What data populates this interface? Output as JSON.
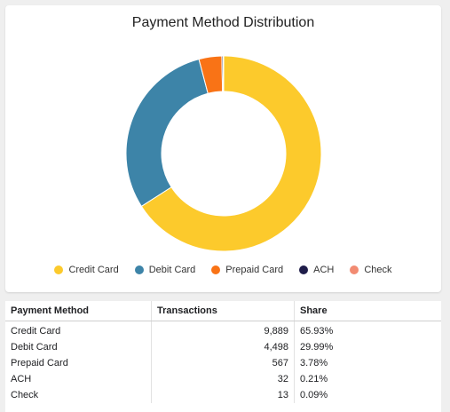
{
  "chart_data": {
    "type": "pie",
    "title": "Payment Method Distribution",
    "donut": true,
    "categories": [
      "Credit Card",
      "Debit Card",
      "Prepaid Card",
      "ACH",
      "Check"
    ],
    "values": [
      9889,
      4498,
      567,
      32,
      13
    ],
    "colors": [
      "#fcca2c",
      "#3d84a8",
      "#f97316",
      "#1f1d4a",
      "#f28b72"
    ],
    "legend_position": "bottom"
  },
  "table": {
    "headers": [
      "Payment Method",
      "Transactions",
      "Share"
    ],
    "rows": [
      [
        "Credit Card",
        "9,889",
        "65.93%"
      ],
      [
        "Debit Card",
        "4,498",
        "29.99%"
      ],
      [
        "Prepaid Card",
        "567",
        "3.78%"
      ],
      [
        "ACH",
        "32",
        "0.21%"
      ],
      [
        "Check",
        "13",
        "0.09%"
      ]
    ]
  }
}
